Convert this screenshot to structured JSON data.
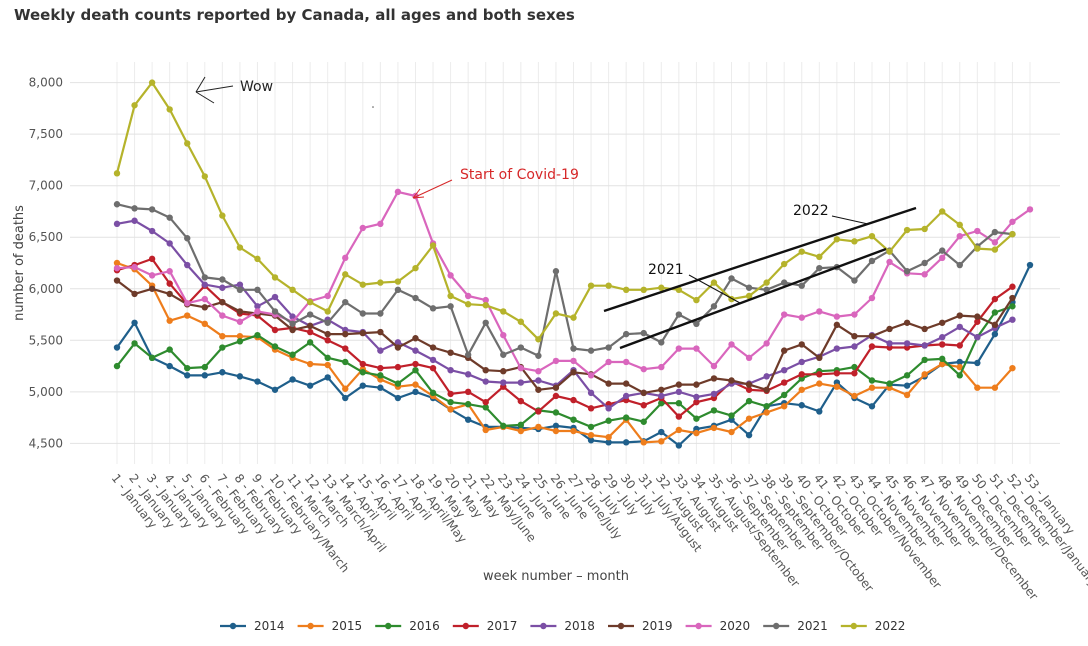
{
  "chart_data": {
    "type": "line",
    "title": "Weekly death counts reported by Canada, all ages and both sexes",
    "xlabel": "week number – month",
    "ylabel": "number of deaths",
    "ylim": [
      4300,
      8200
    ],
    "yticks": [
      4500,
      5000,
      5500,
      6000,
      6500,
      7000,
      7500,
      8000
    ],
    "ytick_labels": [
      "4,500",
      "5,000",
      "5,500",
      "6,000",
      "6,500",
      "7,000",
      "7,500",
      "8,000"
    ],
    "grid": true,
    "legend_position": "bottom",
    "categories": [
      "1 - January",
      "2 - January",
      "3 - January",
      "4 - January",
      "5 - January",
      "6 - February",
      "7 - February",
      "8 - February",
      "9 - February",
      "10 - February/March",
      "11 - March",
      "12 - March",
      "13 - March/April",
      "14 - April",
      "15 - April",
      "16 - April",
      "17 - April",
      "18 - April/May",
      "19 - May",
      "20 - May",
      "21 - May",
      "22 - May/June",
      "23 - June",
      "24 - June",
      "25 - June",
      "26 - June",
      "27 - June/July",
      "28 - July",
      "29 - July",
      "30 - July",
      "31 - July/August",
      "32 - August",
      "33 - August",
      "34 - August",
      "35 - August/September",
      "36 - September",
      "37 - September",
      "38 - September",
      "39 - September/October",
      "40 - October",
      "41 - October",
      "42 - October",
      "43 - October/November",
      "44 - November",
      "45 - November",
      "46 - November",
      "47 - November",
      "48 - November/December",
      "49 - December",
      "50 - December",
      "51 - December",
      "52 - December/January",
      "53 - January"
    ],
    "series": [
      {
        "name": "2014",
        "color": "#1f5f8b",
        "values": [
          5430,
          5670,
          5330,
          5250,
          5160,
          5160,
          5190,
          5150,
          5100,
          5020,
          5120,
          5060,
          5140,
          4940,
          5060,
          5040,
          4940,
          5000,
          4940,
          4830,
          4730,
          4660,
          4660,
          4650,
          4640,
          4670,
          4650,
          4530,
          4510,
          4510,
          4520,
          4610,
          4480,
          4640,
          4670,
          4730,
          4580,
          4860,
          4890,
          4870,
          4810,
          5090,
          4940,
          4860,
          5070,
          5060,
          5150,
          5270,
          5290,
          5280,
          5560,
          5870,
          6230
        ]
      },
      {
        "name": "2015",
        "color": "#ee7d1c",
        "values": [
          6250,
          6190,
          6030,
          5690,
          5740,
          5660,
          5540,
          5540,
          5530,
          5410,
          5330,
          5270,
          5260,
          5030,
          5220,
          5120,
          5050,
          5070,
          4960,
          4830,
          4880,
          4630,
          4660,
          4620,
          4660,
          4620,
          4620,
          4580,
          4560,
          4730,
          4510,
          4520,
          4630,
          4600,
          4650,
          4610,
          4740,
          4800,
          4860,
          5020,
          5080,
          5050,
          4960,
          5040,
          5040,
          4970,
          5170,
          5270,
          5240,
          5040,
          5040,
          5230,
          null
        ]
      },
      {
        "name": "2016",
        "color": "#2e8b2e",
        "values": [
          5250,
          5470,
          5330,
          5410,
          5230,
          5240,
          5430,
          5490,
          5550,
          5440,
          5360,
          5480,
          5330,
          5290,
          5190,
          5160,
          5080,
          5210,
          4990,
          4900,
          4880,
          4850,
          4670,
          4680,
          4820,
          4800,
          4730,
          4660,
          4720,
          4750,
          4710,
          4890,
          4890,
          4740,
          4820,
          4770,
          4910,
          4860,
          4970,
          5130,
          5200,
          5210,
          5240,
          5110,
          5080,
          5160,
          5310,
          5320,
          5160,
          5530,
          5770,
          5830,
          null
        ]
      },
      {
        "name": "2017",
        "color": "#c0202a",
        "values": [
          6180,
          6230,
          6290,
          6050,
          5850,
          6030,
          5870,
          5760,
          5740,
          5600,
          5620,
          5580,
          5500,
          5420,
          5270,
          5230,
          5240,
          5270,
          5230,
          4980,
          5000,
          4900,
          5050,
          4910,
          4810,
          4960,
          4920,
          4840,
          4880,
          4920,
          4870,
          4940,
          4760,
          4900,
          4940,
          5100,
          5020,
          5010,
          5090,
          5170,
          5170,
          5180,
          5180,
          5440,
          5430,
          5430,
          5450,
          5460,
          5450,
          5680,
          5900,
          6020,
          null
        ]
      },
      {
        "name": "2018",
        "color": "#7b4fa5",
        "values": [
          6630,
          6660,
          6560,
          6440,
          6230,
          6040,
          6010,
          6040,
          5830,
          5920,
          5730,
          5640,
          5700,
          5600,
          5580,
          5400,
          5480,
          5400,
          5310,
          5210,
          5170,
          5100,
          5090,
          5090,
          5110,
          5060,
          5210,
          4990,
          4840,
          4960,
          4990,
          4960,
          5000,
          4950,
          4980,
          5080,
          5080,
          5150,
          5210,
          5290,
          5340,
          5420,
          5440,
          5550,
          5470,
          5470,
          5450,
          5530,
          5630,
          5530,
          5620,
          5700,
          null
        ]
      },
      {
        "name": "2019",
        "color": "#6e3b2a",
        "values": [
          6080,
          5950,
          6000,
          5950,
          5850,
          5820,
          5870,
          5780,
          5760,
          5740,
          5600,
          5640,
          5560,
          5560,
          5570,
          5580,
          5430,
          5520,
          5430,
          5380,
          5330,
          5210,
          5200,
          5240,
          5020,
          5040,
          5190,
          5170,
          5080,
          5080,
          4990,
          5020,
          5070,
          5070,
          5130,
          5110,
          5070,
          5020,
          5400,
          5460,
          5330,
          5650,
          5540,
          5540,
          5610,
          5670,
          5610,
          5670,
          5740,
          5730,
          5650,
          5910,
          null
        ]
      },
      {
        "name": "2020",
        "color": "#d966bd",
        "values": [
          6200,
          6210,
          6130,
          6170,
          5860,
          5900,
          5740,
          5680,
          5780,
          5750,
          5680,
          5880,
          5930,
          6300,
          6590,
          6630,
          6940,
          6900,
          6440,
          6130,
          5930,
          5890,
          5550,
          5230,
          5200,
          5300,
          5300,
          5160,
          5290,
          5290,
          5220,
          5240,
          5420,
          5420,
          5250,
          5460,
          5330,
          5470,
          5750,
          5720,
          5780,
          5730,
          5750,
          5910,
          6260,
          6150,
          6140,
          6300,
          6510,
          6560,
          6450,
          6650,
          6770
        ]
      },
      {
        "name": "2021",
        "color": "#6e6e6e",
        "values": [
          6820,
          6780,
          6770,
          6690,
          6490,
          6110,
          6090,
          5990,
          5990,
          5780,
          5660,
          5750,
          5670,
          5870,
          5760,
          5760,
          5990,
          5910,
          5810,
          5830,
          5360,
          5670,
          5360,
          5430,
          5350,
          6170,
          5420,
          5400,
          5430,
          5560,
          5570,
          5480,
          5750,
          5660,
          5830,
          6100,
          6010,
          5990,
          6060,
          6030,
          6200,
          6210,
          6080,
          6270,
          6370,
          6170,
          6250,
          6370,
          6230,
          6410,
          6550,
          6530,
          null
        ]
      },
      {
        "name": "2022",
        "color": "#b5b32b",
        "values": [
          7120,
          7780,
          8000,
          7740,
          7410,
          7090,
          6710,
          6400,
          6290,
          6110,
          5990,
          5870,
          5780,
          6140,
          6040,
          6060,
          6070,
          6200,
          6420,
          5930,
          5850,
          5840,
          5780,
          5680,
          5510,
          5760,
          5720,
          6030,
          6030,
          5990,
          5990,
          6010,
          5990,
          5890,
          6060,
          5900,
          5930,
          6060,
          6240,
          6360,
          6310,
          6480,
          6460,
          6510,
          6360,
          6570,
          6580,
          6750,
          6620,
          6390,
          6380,
          6530,
          null
        ]
      }
    ],
    "annotations": [
      {
        "text": "Wow",
        "color": "#222222"
      },
      {
        "text": "Start of Covid-19",
        "color": "#d62728"
      },
      {
        "text": "2022",
        "color": "#111111"
      },
      {
        "text": "2021",
        "color": "#111111"
      }
    ]
  }
}
